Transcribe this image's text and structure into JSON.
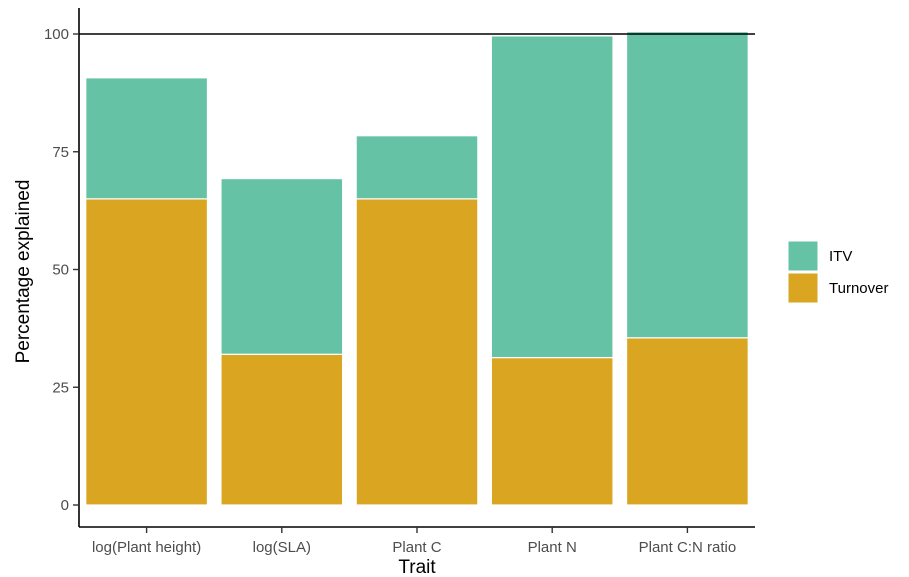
{
  "chart_data": {
    "type": "bar",
    "stacked": true,
    "categories": [
      "log(Plant height)",
      "log(SLA)",
      "Plant C",
      "Plant N",
      "Plant C:N ratio"
    ],
    "series": [
      {
        "name": "Turnover",
        "values": [
          65,
          32,
          65,
          31.3,
          35.5
        ],
        "color": "#DAA520"
      },
      {
        "name": "ITV",
        "values": [
          25.7,
          37.3,
          13.4,
          68.3,
          65
        ],
        "color": "#66C2A5"
      }
    ],
    "title": "",
    "xlabel": "Trait",
    "ylabel": "Percentage explained",
    "ylim": [
      -4.5,
      105
    ],
    "yticks": [
      0,
      25,
      50,
      75,
      100
    ],
    "reference_line": 100,
    "legend": {
      "position": "right",
      "entries": [
        {
          "label": "ITV",
          "color": "#66C2A5"
        },
        {
          "label": "Turnover",
          "color": "#DAA520"
        }
      ]
    },
    "grid": false
  }
}
